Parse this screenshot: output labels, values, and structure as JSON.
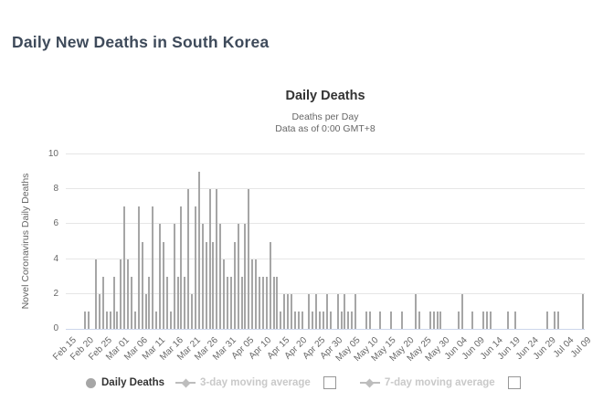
{
  "page": {
    "title": "Daily New Deaths in South Korea"
  },
  "chart": {
    "title": "Daily Deaths",
    "subtitle": [
      "Deaths per Day",
      "Data as of 0:00 GMT+8"
    ],
    "y_axis_title": "Novel Coronavirus Daily Deaths",
    "legend": {
      "items": [
        {
          "label": "Daily Deaths",
          "marker": "circle",
          "active": true,
          "checkbox": false
        },
        {
          "label": "3-day moving average",
          "marker": "line-diamond",
          "active": false,
          "checkbox": true
        },
        {
          "label": "7-day moving average",
          "marker": "line-diamond",
          "active": false,
          "checkbox": true
        }
      ]
    },
    "colors": {
      "bar": "#a6a6a6",
      "grid": "#e6e6e6",
      "axis_line": "#ccd6eb",
      "axis_label": "#666666",
      "chart_title": "#333333",
      "page_title": "#3e4a5a",
      "legend_inactive": "#c9c9c9"
    }
  },
  "chart_data": {
    "type": "bar",
    "title": "Daily Deaths",
    "subtitle": "Deaths per Day — Data as of 0:00 GMT+8",
    "xlabel": "",
    "ylabel": "Novel Coronavirus Daily Deaths",
    "ylim": [
      0,
      10
    ],
    "y_ticks": [
      0,
      2,
      4,
      6,
      8,
      10
    ],
    "grid": true,
    "legend_position": "bottom",
    "x_start": "Feb 15",
    "x_end": "Jul 09",
    "x_tick_interval_days": 5,
    "x_tick_labels": [
      "Feb 15",
      "Feb 20",
      "Feb 25",
      "Mar 01",
      "Mar 06",
      "Mar 11",
      "Mar 16",
      "Mar 21",
      "Mar 26",
      "Mar 31",
      "Apr 05",
      "Apr 10",
      "Apr 15",
      "Apr 20",
      "Apr 25",
      "Apr 30",
      "May 05",
      "May 10",
      "May 15",
      "May 20",
      "May 25",
      "May 30",
      "Jun 04",
      "Jun 09",
      "Jun 14",
      "Jun 19",
      "Jun 24",
      "Jun 29",
      "Jul 04",
      "Jul 09"
    ],
    "series_name": "Daily Deaths",
    "values": [
      0,
      0,
      0,
      0,
      0,
      1,
      1,
      0,
      4,
      2,
      3,
      1,
      1,
      3,
      1,
      4,
      7,
      4,
      3,
      1,
      7,
      5,
      2,
      3,
      7,
      1,
      6,
      5,
      3,
      1,
      6,
      3,
      7,
      3,
      8,
      2,
      7,
      9,
      6,
      5,
      8,
      5,
      8,
      6,
      4,
      3,
      3,
      5,
      6,
      3,
      6,
      8,
      4,
      4,
      3,
      3,
      3,
      5,
      3,
      3,
      1,
      2,
      2,
      2,
      1,
      1,
      1,
      0,
      2,
      1,
      2,
      1,
      1,
      2,
      1,
      0,
      2,
      1,
      2,
      1,
      1,
      2,
      0,
      0,
      1,
      1,
      0,
      0,
      1,
      0,
      0,
      1,
      0,
      0,
      1,
      0,
      0,
      0,
      2,
      1,
      0,
      0,
      1,
      1,
      1,
      1,
      0,
      0,
      0,
      0,
      1,
      2,
      0,
      0,
      1,
      0,
      0,
      1,
      1,
      1,
      0,
      0,
      0,
      0,
      1,
      0,
      1,
      0,
      0,
      0,
      0,
      0,
      0,
      0,
      0,
      1,
      0,
      1,
      1,
      0,
      0,
      0,
      0,
      0,
      0,
      2
    ]
  }
}
